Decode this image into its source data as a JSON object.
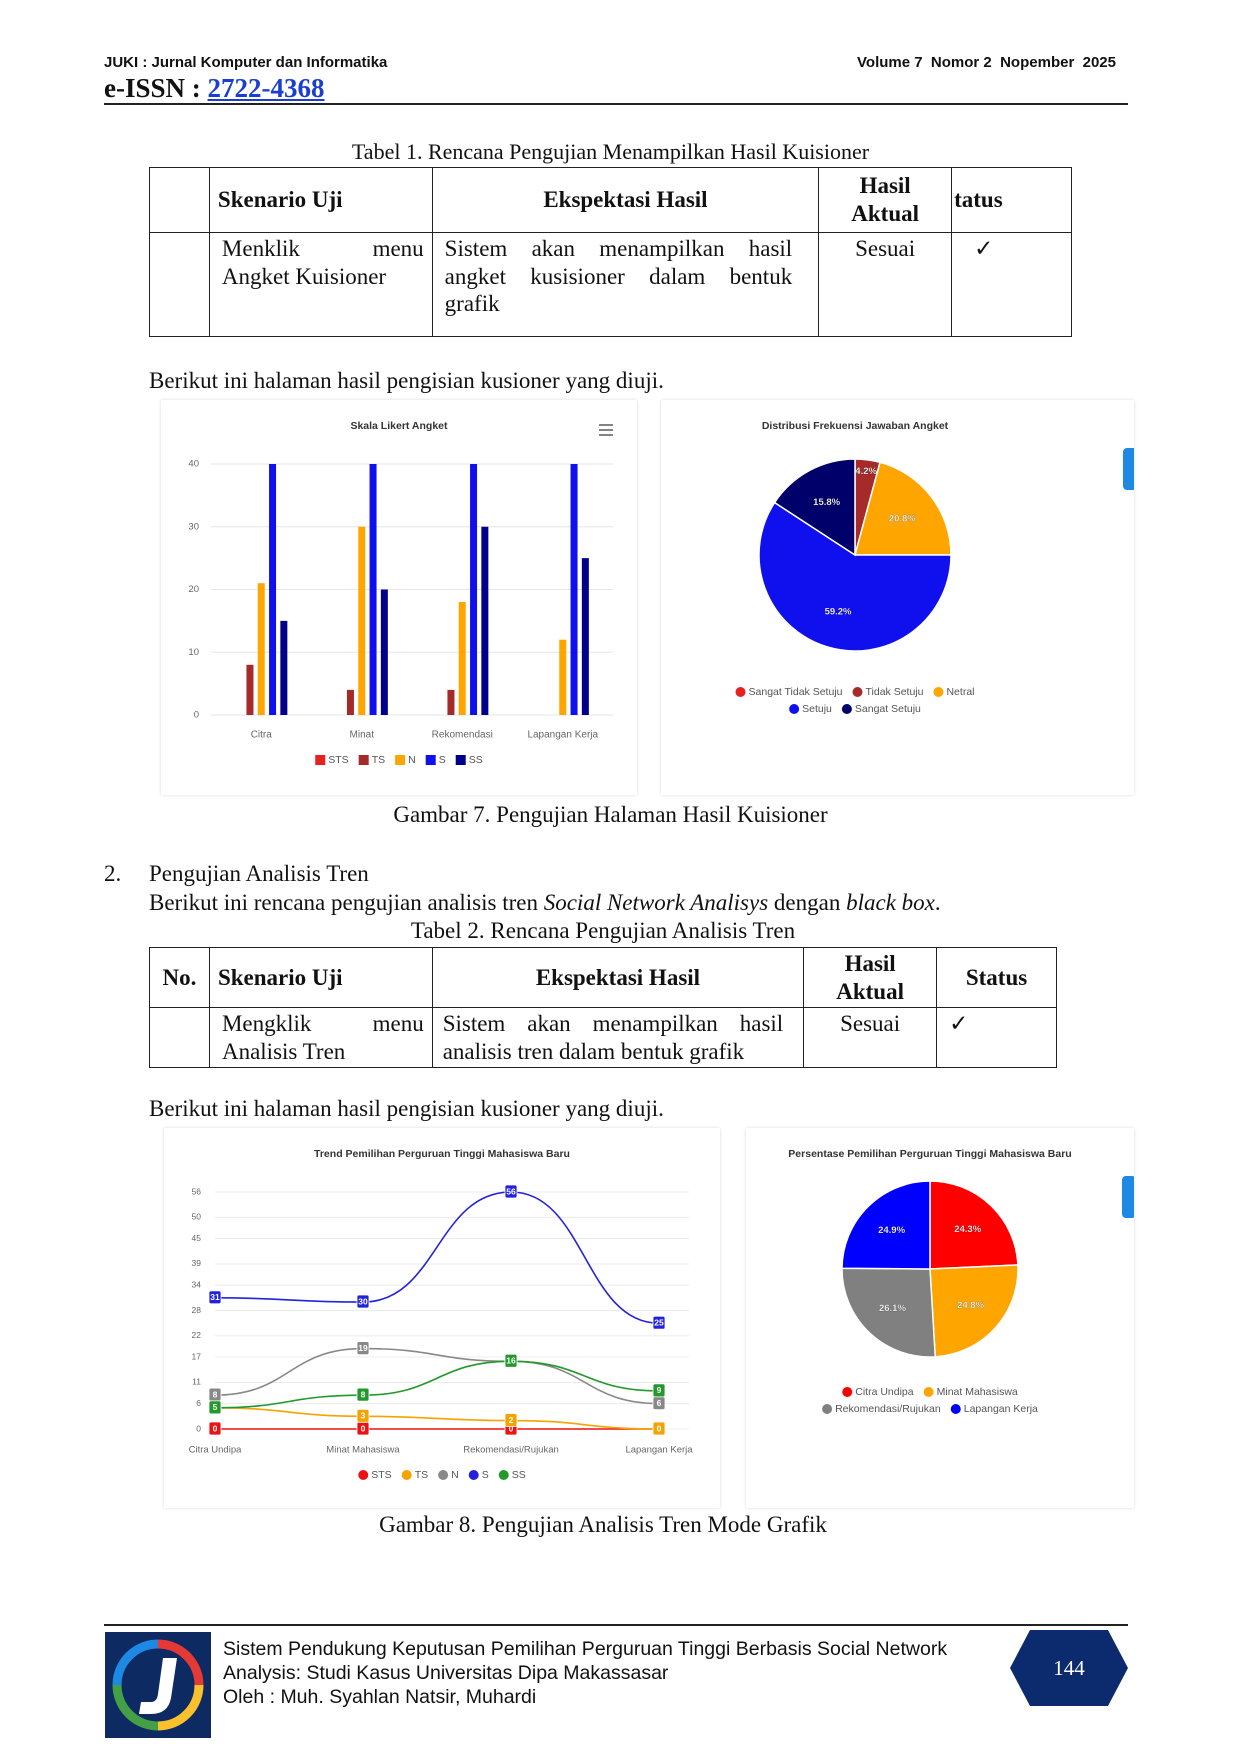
{
  "header": {
    "journal": "JUKI : Jurnal Komputer dan Informatika",
    "issue": "Volume 7  Nomor 2  Nopember  2025",
    "issn_label": "e-ISSN : ",
    "issn": "2722-4368"
  },
  "table_1": {
    "caption": "Tabel 1. Rencana Pengujian Menampilkan Hasil Kuisioner",
    "headers": [
      "Skenario Uji",
      "Ekspektasi Hasil",
      "Hasil Aktual",
      "tatus"
    ],
    "rows": [
      [
        "Menklik menu Angket Kuisioner",
        "Sistem akan menampilkan hasil angket kusisioner dalam bentuk grafik",
        "Sesuai",
        "✓"
      ]
    ]
  },
  "paragraph_1": "Berikut ini halaman hasil pengisian kusioner yang diuji.",
  "figure_7": {
    "caption": "Gambar 7. Pengujian Halaman Hasil Kuisioner"
  },
  "section_2": {
    "number": "2.",
    "title": "Pengujian Analisis Tren",
    "intro": [
      "Berikut ini rencana pengujian analisis tren ",
      "Social Network Analisys",
      " dengan ",
      "black box",
      "."
    ]
  },
  "table_2": {
    "caption": "Tabel 2. Rencana Pengujian Analisis Tren",
    "headers": [
      "No.",
      "Skenario Uji",
      "Ekspektasi Hasil",
      "Hasil Aktual",
      "Status"
    ],
    "rows": [
      [
        "Mengklik menu Analisis Tren",
        "Sistem akan menampilkan hasil analisis tren dalam bentuk grafik",
        "Sesuai",
        "✓"
      ]
    ]
  },
  "paragraph_2": "Berikut ini halaman hasil pengisian kusioner yang diuji.",
  "figure_8": {
    "caption": "Gambar 8. Pengujian Analisis Tren Mode Grafik"
  },
  "footer": {
    "title_lines": [
      "Sistem Pendukung Keputusan Pemilihan Perguruan Tinggi Berbasis Social Network",
      "Analysis: Studi Kasus Universitas Dipa Makassasar"
    ],
    "authors": "Oleh : Muh. Syahlan Natsir, Muhardi",
    "page": 144
  },
  "chart_data": [
    {
      "type": "bar",
      "title": "Skala Likert Angket",
      "categories": [
        "Citra",
        "Minat",
        "Rekomendasi",
        "Lapangan Kerja"
      ],
      "series": [
        {
          "name": "STS",
          "color": "#e8201e",
          "values": [
            0,
            0,
            0,
            0
          ]
        },
        {
          "name": "TS",
          "color": "#a52a2a",
          "values": [
            8,
            4,
            4,
            0
          ]
        },
        {
          "name": "N",
          "color": "#ffa500",
          "values": [
            21,
            30,
            18,
            12
          ]
        },
        {
          "name": "S",
          "color": "#1010ee",
          "values": [
            40,
            40,
            40,
            40
          ]
        },
        {
          "name": "SS",
          "color": "#00008b",
          "values": [
            15,
            20,
            30,
            25
          ]
        }
      ],
      "ylim": [
        0,
        40
      ],
      "yticks": [
        0,
        10,
        20,
        30,
        40
      ],
      "grid": true
    },
    {
      "type": "pie",
      "title": "Distribusi Frekuensi Jawaban Angket",
      "categories": [
        "Sangat Tidak Setuju",
        "Tidak Setuju",
        "Netral",
        "Setuju",
        "Sangat Setuju"
      ],
      "values": [
        0,
        4.2,
        20.8,
        59.2,
        15.8
      ],
      "value_labels": [
        null,
        "4.2%",
        "20.8%",
        "59.2%",
        "15.8%"
      ],
      "colors": [
        "#e8201e",
        "#a52a2a",
        "#ffa500",
        "#1010ee",
        "#00006b"
      ]
    },
    {
      "type": "line",
      "title": "Trend Pemilihan Perguruan Tinggi Mahasiswa Baru",
      "categories": [
        "Citra Undipa",
        "Minat Mahasiswa",
        "Rekomendasi/Rujukan",
        "Lapangan Kerja"
      ],
      "series": [
        {
          "name": "STS",
          "color": "#ee1111",
          "values": [
            0,
            0,
            0,
            0
          ]
        },
        {
          "name": "TS",
          "color": "#f5a300",
          "values": [
            5,
            3,
            2,
            0
          ]
        },
        {
          "name": "N",
          "color": "#888888",
          "values": [
            8,
            19,
            16,
            6
          ]
        },
        {
          "name": "S",
          "color": "#2222dd",
          "values": [
            31,
            30,
            56,
            25
          ]
        },
        {
          "name": "SS",
          "color": "#22992a",
          "values": [
            5,
            8,
            16,
            9
          ]
        }
      ],
      "ylim": [
        0,
        56
      ],
      "yticks": [
        0,
        6,
        11,
        17,
        22,
        28,
        34,
        39,
        45,
        50,
        56
      ],
      "grid": true
    },
    {
      "type": "pie",
      "title": "Persentase Pemilihan Perguruan Tinggi Mahasiswa Baru",
      "categories": [
        "Citra Undipa",
        "Minat Mahasiswa",
        "Rekomendasi/Rujukan",
        "Lapangan Kerja"
      ],
      "values": [
        24.3,
        24.8,
        26.1,
        24.9
      ],
      "value_labels": [
        "24.3%",
        "24.8%",
        "26.1%",
        "24.9%"
      ],
      "colors": [
        "#ff0000",
        "#ffa500",
        "#808080",
        "#0000ff"
      ]
    }
  ]
}
